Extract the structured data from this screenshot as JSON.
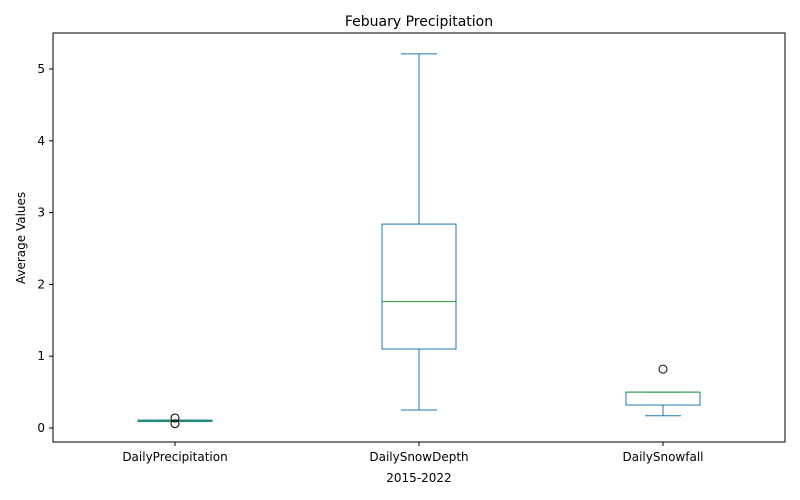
{
  "chart_data": {
    "type": "box",
    "title": "Febuary Precipitation",
    "xlabel": "2015-2022",
    "ylabel": "Average Values",
    "ylim": [
      -0.2,
      5.42
    ],
    "yticks": [
      0,
      1,
      2,
      3,
      4,
      5
    ],
    "grid": false,
    "colors": {
      "box": "#1f77b4",
      "median": "#2ca02c",
      "flier": "#000000"
    },
    "categories": [
      "DailyPrecipitation",
      "DailySnowDepth",
      "DailySnowfall"
    ],
    "boxes": [
      {
        "name": "DailyPrecipitation",
        "whisker_low": 0.09,
        "q1": 0.09,
        "median": 0.1,
        "q3": 0.11,
        "whisker_high": 0.11,
        "fliers": [
          0.06,
          0.14
        ]
      },
      {
        "name": "DailySnowDepth",
        "whisker_low": 0.25,
        "q1": 1.1,
        "median": 1.76,
        "q3": 2.84,
        "whisker_high": 5.21,
        "fliers": []
      },
      {
        "name": "DailySnowfall",
        "whisker_low": 0.17,
        "q1": 0.32,
        "median": 0.5,
        "q3": 0.5,
        "whisker_high": 0.5,
        "fliers": [
          0.82
        ]
      }
    ]
  }
}
